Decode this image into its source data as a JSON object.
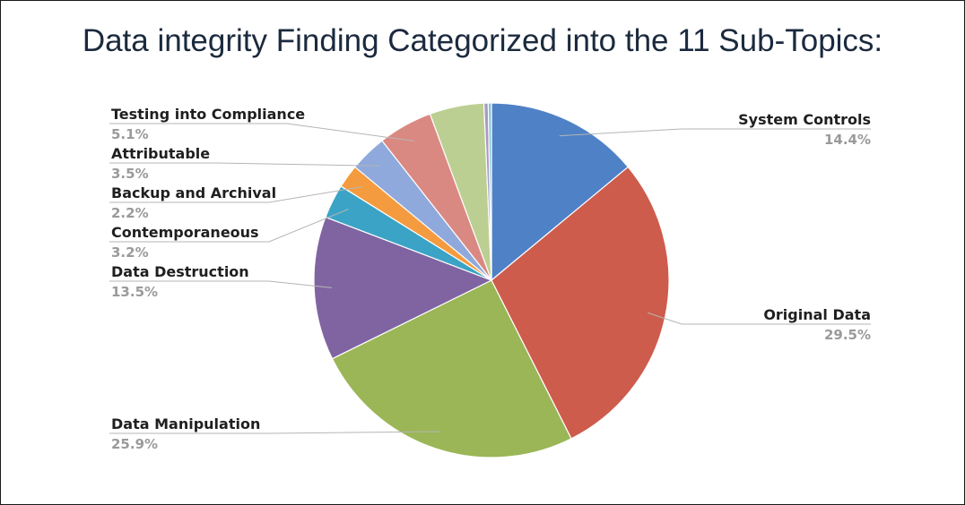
{
  "chart_data": {
    "type": "pie",
    "title": "Data integrity Finding Categorized into the 11 Sub-Topics:",
    "slices": [
      {
        "name": "System Controls",
        "value": 14.4,
        "label": "14.4%",
        "color": "#4f81c7"
      },
      {
        "name": "Original Data",
        "value": 29.5,
        "label": "29.5%",
        "color": "#cd5c4c"
      },
      {
        "name": "Data Manipulation",
        "value": 25.9,
        "label": "25.9%",
        "color": "#9bb657"
      },
      {
        "name": "Data Destruction",
        "value": 13.5,
        "label": "13.5%",
        "color": "#8064a2"
      },
      {
        "name": "Contemporaneous",
        "value": 3.2,
        "label": "3.2%",
        "color": "#3ba3c6"
      },
      {
        "name": "Backup and Archival",
        "value": 2.2,
        "label": "2.2%",
        "color": "#f59b3f"
      },
      {
        "name": "Attributable",
        "value": 3.5,
        "label": "3.5%",
        "color": "#8fa9dc"
      },
      {
        "name": "Testing into Compliance",
        "value": 5.1,
        "label": "5.1%",
        "color": "#da8982"
      },
      {
        "name": "",
        "value": 5.1,
        "label": "",
        "color": "#bccf92"
      },
      {
        "name": "",
        "value": 0.4,
        "label": "",
        "color": "#a79bc2"
      },
      {
        "name": "",
        "value": 0.3,
        "label": "",
        "color": "#7fc3d8"
      }
    ],
    "start_angle_deg": 0,
    "direction": "clockwise",
    "legend": "none"
  }
}
